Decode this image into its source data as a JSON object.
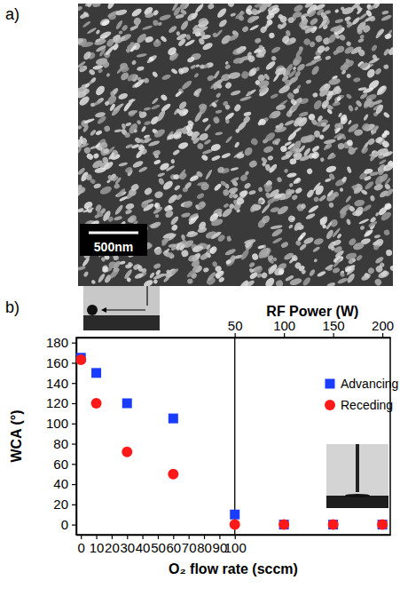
{
  "panel_labels": [
    "a)",
    "b)"
  ],
  "image": {
    "scale_bar_label": "500nm"
  },
  "chart_data": {
    "type": "scatter",
    "x_label": "O₂ flow rate (sccm)",
    "x2_label": "RF Power (W)",
    "y_label": "WCA (°)",
    "xlim": [
      -3,
      201
    ],
    "xticks": [
      0,
      10,
      20,
      30,
      40,
      50,
      60,
      70,
      80,
      90,
      100
    ],
    "x2lim": [
      -111,
      208
    ],
    "x2ticks": [
      50,
      100,
      150,
      200
    ],
    "ylim": [
      -10,
      185
    ],
    "yticks": [
      0,
      20,
      40,
      60,
      80,
      100,
      120,
      140,
      160,
      180
    ],
    "vline": 100,
    "legend": "right",
    "series": [
      {
        "name": "Advancing",
        "color": "#1a3cff",
        "marker": "square",
        "x": [
          0,
          10,
          30,
          60,
          100
        ],
        "values": [
          165,
          150,
          120,
          105,
          10
        ]
      },
      {
        "name": "Receding",
        "color": "#ff1a1a",
        "marker": "circle",
        "x": [
          0,
          10,
          30,
          60,
          100
        ],
        "values": [
          163,
          120,
          72,
          50,
          0
        ]
      },
      {
        "name": "Advancing",
        "color": "#1a3cff",
        "marker": "square",
        "axis": "x2",
        "x": [
          100,
          150,
          200
        ],
        "values": [
          0,
          0,
          0
        ]
      },
      {
        "name": "Receding",
        "color": "#ff1a1a",
        "marker": "circle",
        "axis": "x2",
        "x": [
          100,
          150,
          200
        ],
        "values": [
          0,
          0,
          0
        ]
      }
    ]
  }
}
